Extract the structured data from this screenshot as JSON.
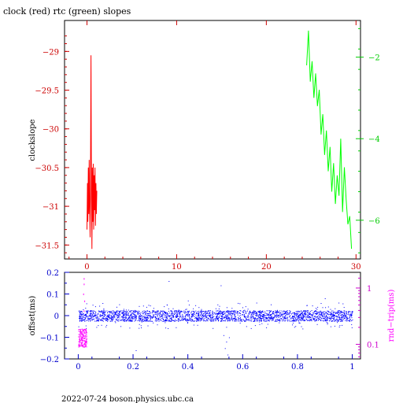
{
  "colors": {
    "clock": "#ff0000",
    "rtc": "#00ff00",
    "offset": "#0000ff",
    "rndtrip": "#ff00ff",
    "axis_top_left": "#cc0000",
    "axis_top_right": "#00cc00",
    "axis_bottom_left": "#0000cc",
    "axis_bottom_right": "#cc00cc"
  },
  "footer": "2022-07-24  boson.physics.ubc.ca",
  "chart_data": [
    {
      "type": "line",
      "title": "clock (red) rtc (green) slopes",
      "ylabel": "clockslope",
      "xlim": [
        -2.5,
        30.5
      ],
      "ylim": [
        -31.68,
        -28.6
      ],
      "y2lim": [
        -6.95,
        -1.1
      ],
      "x_ticks": [
        "0",
        "10",
        "20",
        "30"
      ],
      "x_tick_values": [
        0,
        10,
        20,
        30
      ],
      "y_ticks": [
        "−29",
        "−29.5",
        "−30",
        "−30.5",
        "−31",
        "−31.5"
      ],
      "y_tick_values": [
        -29,
        -29.5,
        -30,
        -30.5,
        -31,
        -31.5
      ],
      "y2_ticks": [
        "−2",
        "−4",
        "−6"
      ],
      "y2_tick_values": [
        -2,
        -4,
        -6
      ],
      "series": [
        {
          "name": "clock",
          "axis": "left",
          "x": [
            0.0,
            0.05,
            0.1,
            0.15,
            0.2,
            0.25,
            0.3,
            0.35,
            0.4,
            0.45,
            0.5,
            0.55,
            0.6,
            0.65,
            0.7,
            0.75,
            0.8,
            0.85,
            0.9,
            0.95,
            1.0,
            1.05,
            1.1
          ],
          "values": [
            -31.3,
            -30.7,
            -31.2,
            -30.5,
            -31.1,
            -30.4,
            -31.0,
            -31.4,
            -30.6,
            -29.05,
            -30.9,
            -31.55,
            -30.5,
            -31.2,
            -30.45,
            -31.3,
            -30.6,
            -31.05,
            -30.5,
            -31.25,
            -30.7,
            -31.1,
            -30.8
          ]
        },
        {
          "name": "rtc",
          "axis": "right",
          "x": [
            24.5,
            24.7,
            24.9,
            25.1,
            25.3,
            25.5,
            25.7,
            25.9,
            26.1,
            26.3,
            26.5,
            26.7,
            26.9,
            27.1,
            27.3,
            27.5,
            27.7,
            27.9,
            28.1,
            28.3,
            28.5,
            28.7,
            28.9,
            29.1,
            29.3,
            29.5
          ],
          "values": [
            -2.2,
            -1.35,
            -2.6,
            -2.1,
            -3.0,
            -2.4,
            -3.2,
            -2.8,
            -3.9,
            -3.4,
            -4.4,
            -3.8,
            -4.8,
            -4.2,
            -5.3,
            -4.6,
            -5.6,
            -4.9,
            -5.4,
            -4.0,
            -5.8,
            -4.7,
            -5.5,
            -6.1,
            -5.9,
            -6.7
          ]
        }
      ]
    },
    {
      "type": "scatter",
      "ylabel": "offset(ms)",
      "y2label": "rnd−trip(ms)",
      "xlim": [
        -0.05,
        1.03
      ],
      "ylim": [
        -0.2,
        0.2
      ],
      "y2lim": [
        0.055,
        1.9
      ],
      "y2_scale": "log",
      "x_ticks": [
        "0",
        "0.2",
        "0.4",
        "0.6",
        "0.8",
        "1"
      ],
      "x_tick_values": [
        0,
        0.2,
        0.4,
        0.6,
        0.8,
        1.0
      ],
      "y_ticks": [
        "0.2",
        "0.1",
        "0",
        "−0.1",
        "−0.2"
      ],
      "y_tick_values": [
        0.2,
        0.1,
        0,
        -0.1,
        -0.2
      ],
      "y2_ticks": [
        "1",
        "0.1"
      ],
      "y2_tick_values": [
        1,
        0.1
      ],
      "series": [
        {
          "name": "offset",
          "axis": "left",
          "band": {
            "x_range": [
              0.0,
              1.0
            ],
            "y_center": 0.0,
            "y_halfwidth": 0.025,
            "outlier_halfwidth": 0.06
          },
          "extra_points": [
            [
              0.54,
              -0.12
            ],
            [
              0.535,
              -0.15
            ],
            [
              0.545,
              -0.18
            ],
            [
              0.53,
              -0.09
            ],
            [
              0.55,
              -0.1
            ],
            [
              0.21,
              -0.16
            ],
            [
              0.33,
              0.16
            ],
            [
              0.4,
              0.07
            ],
            [
              0.65,
              0.06
            ],
            [
              0.9,
              0.08
            ],
            [
              0.52,
              0.14
            ],
            [
              0.1,
              -0.05
            ],
            [
              0.95,
              0.06
            ]
          ]
        },
        {
          "name": "rnd-trip",
          "axis": "right",
          "band": {
            "x_range": [
              0.0,
              0.03
            ],
            "y_low": 0.09,
            "y_high": 0.19
          },
          "extra_points": [
            [
              0.02,
              1.5
            ],
            [
              0.02,
              1.2
            ],
            [
              0.018,
              0.8
            ],
            [
              0.022,
              0.6
            ],
            [
              0.02,
              0.4
            ]
          ]
        }
      ]
    }
  ]
}
